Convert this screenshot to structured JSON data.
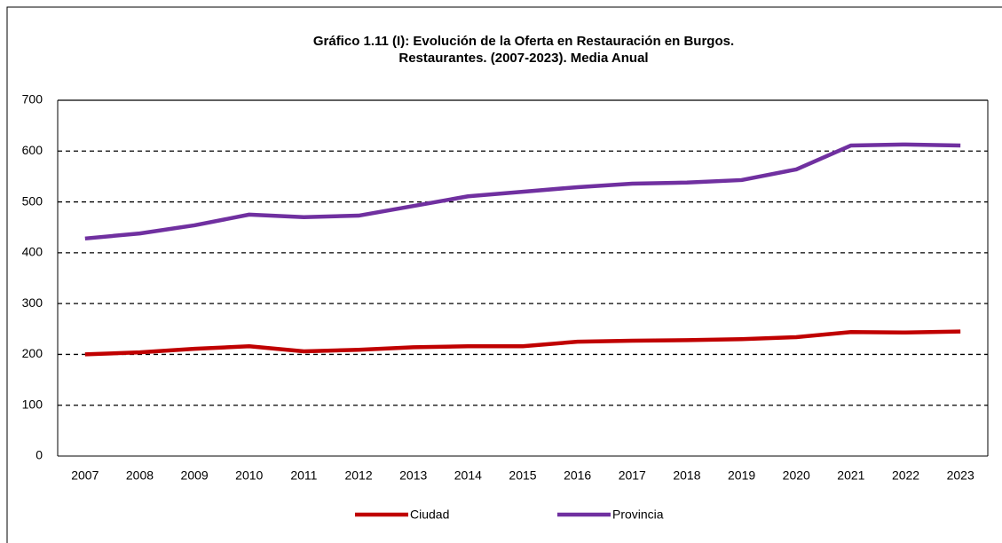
{
  "chart_data": {
    "type": "line",
    "title": [
      "Gráfico 1.11 (I): Evolución de la Oferta en Restauración en Burgos.",
      "Restaurantes. (2007-2023). Media Anual"
    ],
    "categories": [
      "2007",
      "2008",
      "2009",
      "2010",
      "2011",
      "2012",
      "2013",
      "2014",
      "2015",
      "2016",
      "2017",
      "2018",
      "2019",
      "2020",
      "2021",
      "2022",
      "2023"
    ],
    "series": [
      {
        "name": "Ciudad",
        "color": "#c00000",
        "values": [
          200,
          204,
          211,
          216,
          206,
          209,
          214,
          216,
          216,
          225,
          227,
          228,
          230,
          234,
          244,
          243,
          245
        ]
      },
      {
        "name": "Provincia",
        "color": "#7030a0",
        "values": [
          428,
          438,
          454,
          475,
          470,
          473,
          492,
          511,
          520,
          529,
          536,
          538,
          543,
          564,
          611,
          613,
          611
        ]
      }
    ],
    "ylim": [
      0,
      700
    ],
    "yticks": [
      0,
      100,
      200,
      300,
      400,
      500,
      600,
      700
    ],
    "grid": true,
    "legend": "bottom"
  }
}
